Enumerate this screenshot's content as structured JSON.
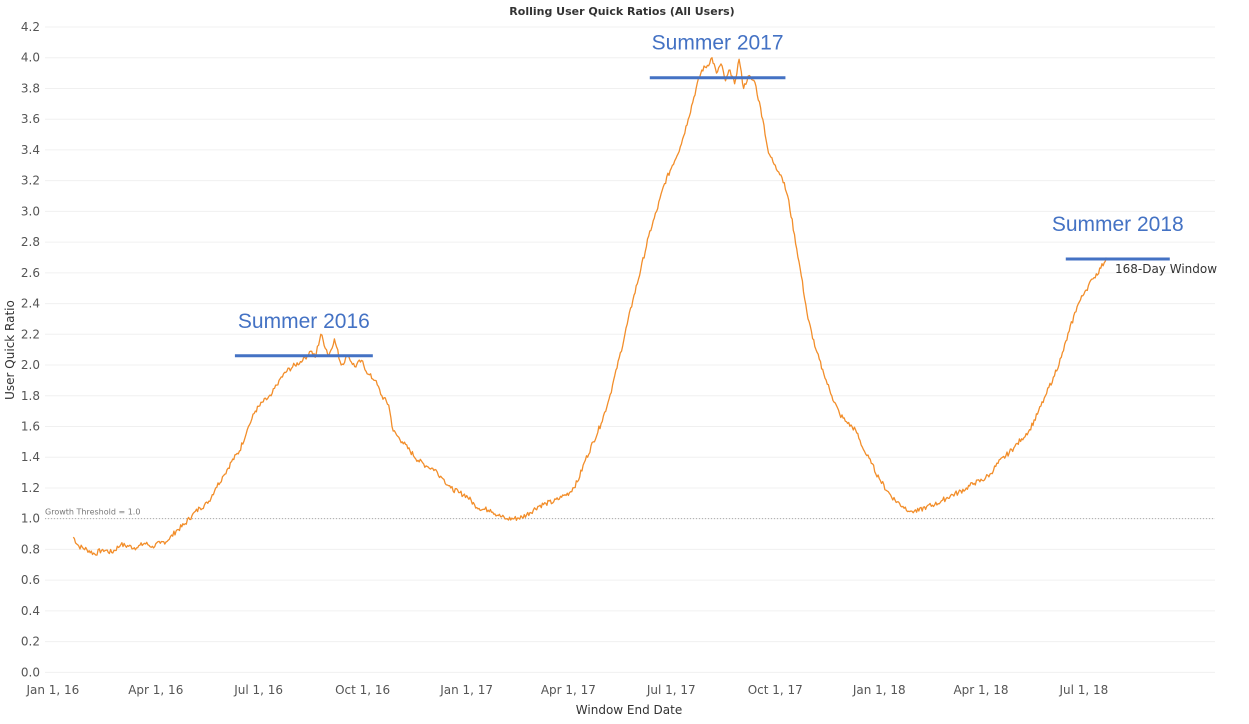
{
  "chart_data": {
    "type": "line",
    "title": "Rolling User Quick Ratios (All Users)",
    "xlabel": "Window End Date",
    "ylabel": "User Quick Ratio",
    "xlim": [
      "2015-12-25",
      "2018-10-25"
    ],
    "ylim": [
      -0.05,
      4.2
    ],
    "x_ticks": [
      {
        "label": "Jan 1, 16",
        "date": "2016-01-01"
      },
      {
        "label": "Apr 1, 16",
        "date": "2016-04-01"
      },
      {
        "label": "Jul 1, 16",
        "date": "2016-07-01"
      },
      {
        "label": "Oct 1, 16",
        "date": "2016-10-01"
      },
      {
        "label": "Jan 1, 17",
        "date": "2017-01-01"
      },
      {
        "label": "Apr 1, 17",
        "date": "2017-04-01"
      },
      {
        "label": "Jul 1, 17",
        "date": "2017-07-01"
      },
      {
        "label": "Oct 1, 17",
        "date": "2017-10-01"
      },
      {
        "label": "Jan 1, 18",
        "date": "2018-01-01"
      },
      {
        "label": "Apr 1, 18",
        "date": "2018-04-01"
      },
      {
        "label": "Jul 1, 18",
        "date": "2018-07-01"
      }
    ],
    "y_ticks": [
      {
        "label": "0.0",
        "value": 0.0
      },
      {
        "label": "0.2",
        "value": 0.2
      },
      {
        "label": "0.4",
        "value": 0.4
      },
      {
        "label": "0.6",
        "value": 0.6
      },
      {
        "label": "0.8",
        "value": 0.8
      },
      {
        "label": "1.0",
        "value": 1.0
      },
      {
        "label": "1.2",
        "value": 1.2
      },
      {
        "label": "1.4",
        "value": 1.4
      },
      {
        "label": "1.6",
        "value": 1.6
      },
      {
        "label": "1.8",
        "value": 1.8
      },
      {
        "label": "2.0",
        "value": 2.0
      },
      {
        "label": "2.2",
        "value": 2.2
      },
      {
        "label": "2.4",
        "value": 2.4
      },
      {
        "label": "2.6",
        "value": 2.6
      },
      {
        "label": "2.8",
        "value": 2.8
      },
      {
        "label": "3.0",
        "value": 3.0
      },
      {
        "label": "3.2",
        "value": 3.2
      },
      {
        "label": "3.4",
        "value": 3.4
      },
      {
        "label": "3.6",
        "value": 3.6
      },
      {
        "label": "3.8",
        "value": 3.8
      },
      {
        "label": "4.0",
        "value": 4.0
      },
      {
        "label": "4.2",
        "value": 4.2
      }
    ],
    "grid": true,
    "series": [
      {
        "color": "#f28e2b",
        "points": [
          [
            "2016-01-19",
            0.88
          ],
          [
            "2016-01-24",
            0.82
          ],
          [
            "2016-01-31",
            0.8
          ],
          [
            "2016-02-07",
            0.77
          ],
          [
            "2016-02-14",
            0.8
          ],
          [
            "2016-02-22",
            0.78
          ],
          [
            "2016-03-01",
            0.83
          ],
          [
            "2016-03-08",
            0.82
          ],
          [
            "2016-03-15",
            0.81
          ],
          [
            "2016-03-22",
            0.84
          ],
          [
            "2016-03-29",
            0.82
          ],
          [
            "2016-04-05",
            0.84
          ],
          [
            "2016-04-12",
            0.86
          ],
          [
            "2016-04-19",
            0.92
          ],
          [
            "2016-04-26",
            0.96
          ],
          [
            "2016-05-03",
            1.02
          ],
          [
            "2016-05-10",
            1.07
          ],
          [
            "2016-05-17",
            1.1
          ],
          [
            "2016-05-24",
            1.2
          ],
          [
            "2016-05-31",
            1.28
          ],
          [
            "2016-06-07",
            1.37
          ],
          [
            "2016-06-14",
            1.44
          ],
          [
            "2016-06-21",
            1.58
          ],
          [
            "2016-06-28",
            1.7
          ],
          [
            "2016-07-05",
            1.76
          ],
          [
            "2016-07-12",
            1.8
          ],
          [
            "2016-07-19",
            1.9
          ],
          [
            "2016-07-26",
            1.96
          ],
          [
            "2016-08-02",
            2.0
          ],
          [
            "2016-08-09",
            2.03
          ],
          [
            "2016-08-16",
            2.09
          ],
          [
            "2016-08-20",
            2.05
          ],
          [
            "2016-08-25",
            2.2
          ],
          [
            "2016-09-01",
            2.06
          ],
          [
            "2016-09-06",
            2.17
          ],
          [
            "2016-09-12",
            2.0
          ],
          [
            "2016-09-18",
            2.06
          ],
          [
            "2016-09-24",
            1.99
          ],
          [
            "2016-09-30",
            2.03
          ],
          [
            "2016-10-06",
            1.94
          ],
          [
            "2016-10-12",
            1.9
          ],
          [
            "2016-10-18",
            1.8
          ],
          [
            "2016-10-24",
            1.74
          ],
          [
            "2016-10-28",
            1.57
          ],
          [
            "2016-11-05",
            1.5
          ],
          [
            "2016-11-12",
            1.44
          ],
          [
            "2016-11-19",
            1.38
          ],
          [
            "2016-11-27",
            1.34
          ],
          [
            "2016-12-04",
            1.32
          ],
          [
            "2016-12-11",
            1.26
          ],
          [
            "2016-12-18",
            1.2
          ],
          [
            "2016-12-25",
            1.17
          ],
          [
            "2017-01-01",
            1.15
          ],
          [
            "2017-01-08",
            1.09
          ],
          [
            "2017-01-15",
            1.06
          ],
          [
            "2017-01-22",
            1.06
          ],
          [
            "2017-01-29",
            1.02
          ],
          [
            "2017-02-05",
            1.0
          ],
          [
            "2017-02-12",
            1.0
          ],
          [
            "2017-02-19",
            1.01
          ],
          [
            "2017-02-26",
            1.04
          ],
          [
            "2017-03-05",
            1.08
          ],
          [
            "2017-03-12",
            1.1
          ],
          [
            "2017-03-19",
            1.11
          ],
          [
            "2017-03-26",
            1.14
          ],
          [
            "2017-04-02",
            1.17
          ],
          [
            "2017-04-09",
            1.24
          ],
          [
            "2017-04-16",
            1.38
          ],
          [
            "2017-04-23",
            1.5
          ],
          [
            "2017-04-30",
            1.62
          ],
          [
            "2017-05-07",
            1.78
          ],
          [
            "2017-05-14",
            1.98
          ],
          [
            "2017-05-21",
            2.2
          ],
          [
            "2017-05-28",
            2.42
          ],
          [
            "2017-06-04",
            2.62
          ],
          [
            "2017-06-11",
            2.84
          ],
          [
            "2017-06-18",
            3.0
          ],
          [
            "2017-06-25",
            3.18
          ],
          [
            "2017-07-02",
            3.3
          ],
          [
            "2017-07-09",
            3.42
          ],
          [
            "2017-07-16",
            3.6
          ],
          [
            "2017-07-23",
            3.8
          ],
          [
            "2017-07-28",
            3.92
          ],
          [
            "2017-08-02",
            3.95
          ],
          [
            "2017-08-06",
            4.0
          ],
          [
            "2017-08-10",
            3.9
          ],
          [
            "2017-08-14",
            3.96
          ],
          [
            "2017-08-18",
            3.85
          ],
          [
            "2017-08-22",
            3.92
          ],
          [
            "2017-08-26",
            3.83
          ],
          [
            "2017-08-30",
            3.99
          ],
          [
            "2017-09-03",
            3.8
          ],
          [
            "2017-09-07",
            3.88
          ],
          [
            "2017-09-13",
            3.84
          ],
          [
            "2017-09-20",
            3.6
          ],
          [
            "2017-09-25",
            3.38
          ],
          [
            "2017-10-01",
            3.3
          ],
          [
            "2017-10-07",
            3.22
          ],
          [
            "2017-10-12",
            3.1
          ],
          [
            "2017-10-18",
            2.85
          ],
          [
            "2017-10-24",
            2.58
          ],
          [
            "2017-10-30",
            2.3
          ],
          [
            "2017-11-06",
            2.1
          ],
          [
            "2017-11-13",
            1.94
          ],
          [
            "2017-11-20",
            1.8
          ],
          [
            "2017-11-27",
            1.68
          ],
          [
            "2017-12-04",
            1.62
          ],
          [
            "2017-12-11",
            1.58
          ],
          [
            "2017-12-18",
            1.45
          ],
          [
            "2017-12-25",
            1.36
          ],
          [
            "2018-01-01",
            1.26
          ],
          [
            "2018-01-08",
            1.18
          ],
          [
            "2018-01-15",
            1.12
          ],
          [
            "2018-01-22",
            1.08
          ],
          [
            "2018-01-29",
            1.05
          ],
          [
            "2018-02-05",
            1.05
          ],
          [
            "2018-02-12",
            1.08
          ],
          [
            "2018-02-19",
            1.09
          ],
          [
            "2018-02-26",
            1.12
          ],
          [
            "2018-03-05",
            1.15
          ],
          [
            "2018-03-12",
            1.17
          ],
          [
            "2018-03-19",
            1.2
          ],
          [
            "2018-03-26",
            1.23
          ],
          [
            "2018-04-02",
            1.25
          ],
          [
            "2018-04-09",
            1.29
          ],
          [
            "2018-04-16",
            1.36
          ],
          [
            "2018-04-23",
            1.41
          ],
          [
            "2018-04-30",
            1.46
          ],
          [
            "2018-05-07",
            1.52
          ],
          [
            "2018-05-14",
            1.58
          ],
          [
            "2018-05-21",
            1.68
          ],
          [
            "2018-05-28",
            1.8
          ],
          [
            "2018-06-04",
            1.92
          ],
          [
            "2018-06-11",
            2.05
          ],
          [
            "2018-06-18",
            2.22
          ],
          [
            "2018-06-25",
            2.38
          ],
          [
            "2018-07-02",
            2.48
          ],
          [
            "2018-07-09",
            2.56
          ],
          [
            "2018-07-16",
            2.63
          ],
          [
            "2018-07-21",
            2.7
          ]
        ]
      }
    ],
    "reference_line": {
      "value": 1.0,
      "label": "Growth Threshold = 1.0"
    },
    "annotations": [
      {
        "text": "Summer 2016",
        "value": 2.06,
        "from": "2016-06-10",
        "to": "2016-10-10"
      },
      {
        "text": "Summer 2017",
        "value": 3.87,
        "from": "2017-06-12",
        "to": "2017-10-10"
      },
      {
        "text": "Summer 2018",
        "value": 2.69,
        "from": "2018-06-15",
        "to": "2018-09-15"
      }
    ],
    "window_label": "168-Day Window"
  }
}
